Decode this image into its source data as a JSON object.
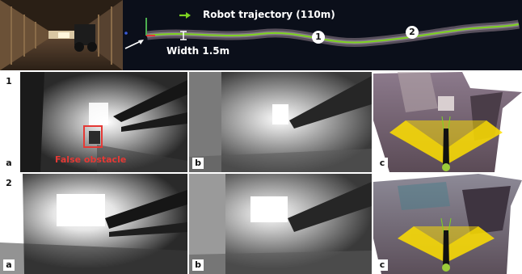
{
  "top": {
    "legend_label": "Robot trajectory (110m)",
    "width_label": "Width 1.5m",
    "waypoint_1": "1",
    "waypoint_2": "2"
  },
  "rows": [
    {
      "number": "1",
      "annotation": "False obstacle"
    },
    {
      "number": "2"
    }
  ],
  "panel_tags": {
    "a": "a",
    "b": "b",
    "c": "c"
  },
  "colors": {
    "trajectory_green": "#7ed321",
    "false_obstacle_red": "#e53935",
    "cone_yellow": "#ffe000"
  }
}
